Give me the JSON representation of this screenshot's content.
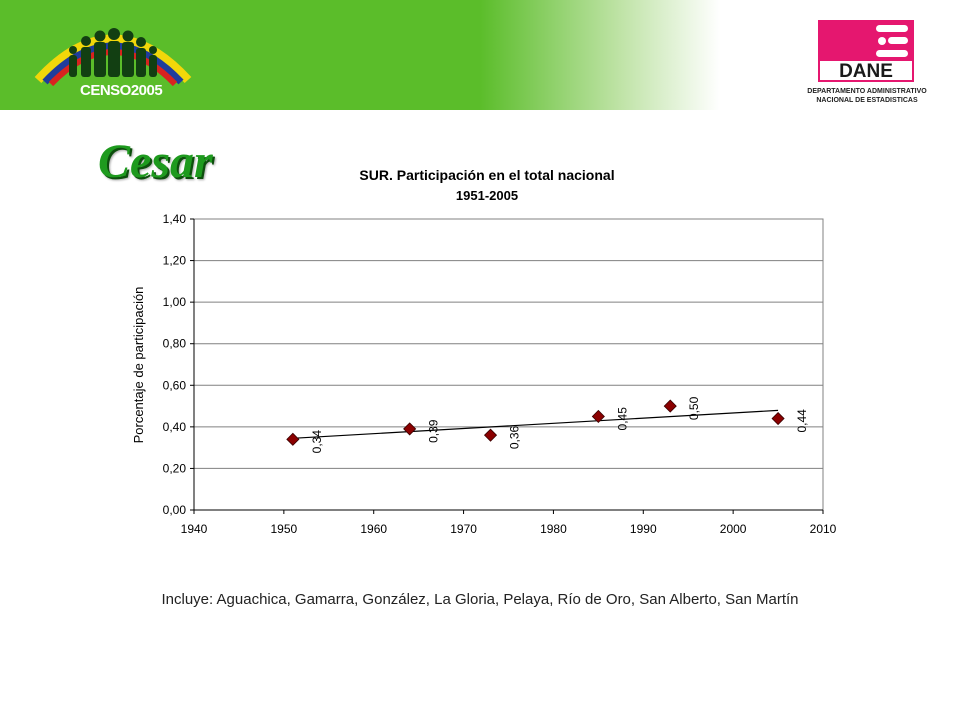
{
  "header": {
    "censo_logo_text": "CENSO2005",
    "dane_logo_text": "DANE",
    "dane_caption_line1": "DEPARTAMENTO ADMINISTRATIVO",
    "dane_caption_line2": "NACIONAL DE ESTADISTICAS"
  },
  "region_title": "Cesar",
  "chart_data": {
    "type": "scatter",
    "title": "SUR. Participación en el total nacional",
    "subtitle": "1951-2005",
    "xlabel": "",
    "ylabel": "Porcentaje de participación",
    "xlim": [
      1940,
      2010
    ],
    "ylim": [
      0,
      1.4
    ],
    "x_ticks": [
      "1940",
      "1950",
      "1960",
      "1970",
      "1980",
      "1990",
      "2000",
      "2010"
    ],
    "y_ticks": [
      "0,00",
      "0,20",
      "0,40",
      "0,60",
      "0,80",
      "1,00",
      "1,20",
      "1,40"
    ],
    "grid": true,
    "legend": "none",
    "marker_color": "#8b0000",
    "trendline": "linear",
    "points": [
      {
        "x": 1951,
        "y": 0.34,
        "label": "0,34"
      },
      {
        "x": 1964,
        "y": 0.39,
        "label": "0,39"
      },
      {
        "x": 1973,
        "y": 0.36,
        "label": "0,36"
      },
      {
        "x": 1985,
        "y": 0.45,
        "label": "0,45"
      },
      {
        "x": 1993,
        "y": 0.5,
        "label": "0,50"
      },
      {
        "x": 2005,
        "y": 0.44,
        "label": "0,44"
      }
    ]
  },
  "footnote": "Incluye: Aguachica, Gamarra, González, La Gloria, Pelaya, Río de Oro, San Alberto, San Martín"
}
